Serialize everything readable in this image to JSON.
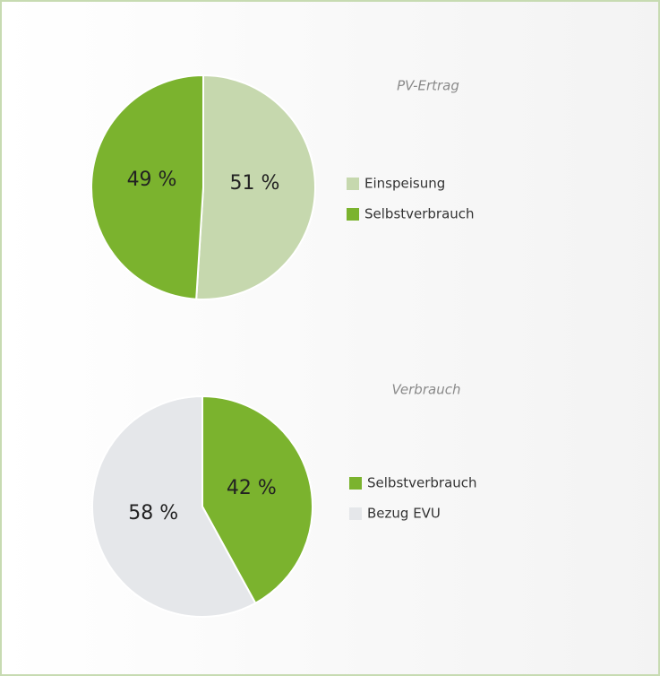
{
  "chart_data": [
    {
      "type": "pie",
      "title": "PV-Ertrag",
      "categories": [
        "Einspeisung",
        "Selbstverbrauch"
      ],
      "values": [
        51,
        49
      ],
      "value_labels": [
        "51 %",
        "49 %"
      ],
      "colors": [
        "#c6d8ae",
        "#7bb32e"
      ]
    },
    {
      "type": "pie",
      "title": "Verbrauch",
      "categories": [
        "Selbstverbrauch",
        "Bezug EVU"
      ],
      "values": [
        42,
        58
      ],
      "value_labels": [
        "42 %",
        "58 %"
      ],
      "colors": [
        "#7bb32e",
        "#e5e7ea"
      ]
    }
  ]
}
